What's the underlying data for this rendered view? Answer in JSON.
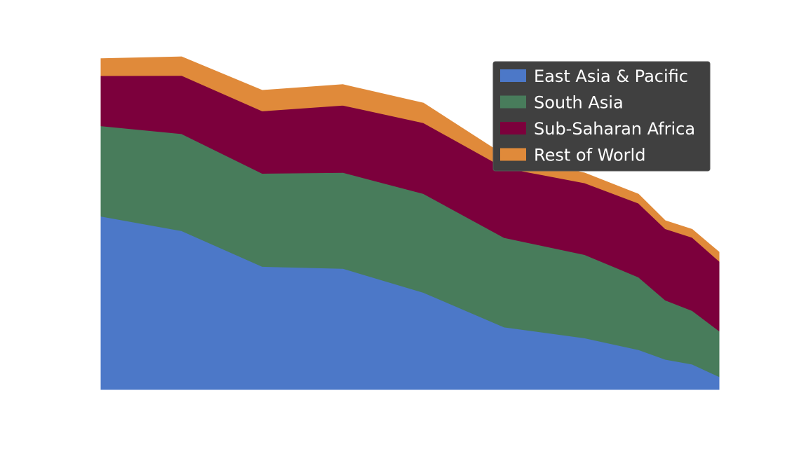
{
  "chart_data": {
    "type": "area",
    "stacked": true,
    "x": [
      1990,
      1993,
      1996,
      1999,
      2002,
      2005,
      2008,
      2010,
      2011,
      2012,
      2013
    ],
    "series": [
      {
        "name": "East Asia & Pacific",
        "color": "#4c78c8",
        "values": [
          966,
          885,
          686,
          675,
          541,
          348,
          287,
          222,
          168,
          141,
          72
        ]
      },
      {
        "name": "South Asia",
        "color": "#487c5b",
        "values": [
          504,
          541,
          519,
          535,
          551,
          499,
          465,
          405,
          330,
          299,
          255
        ]
      },
      {
        "name": "Sub-Saharan Africa",
        "color": "#7c003c",
        "values": [
          280,
          325,
          348,
          375,
          395,
          390,
          400,
          412,
          398,
          408,
          389
        ]
      },
      {
        "name": "Rest of World",
        "color": "#e08a3a",
        "values": [
          95,
          104,
          115,
          115,
          110,
          70,
          55,
          50,
          45,
          45,
          50
        ]
      }
    ],
    "xlim": [
      1990,
      2013
    ],
    "ylim": [
      0,
      2000
    ],
    "grid": false,
    "axes_visible": false,
    "legend": "top-right"
  }
}
